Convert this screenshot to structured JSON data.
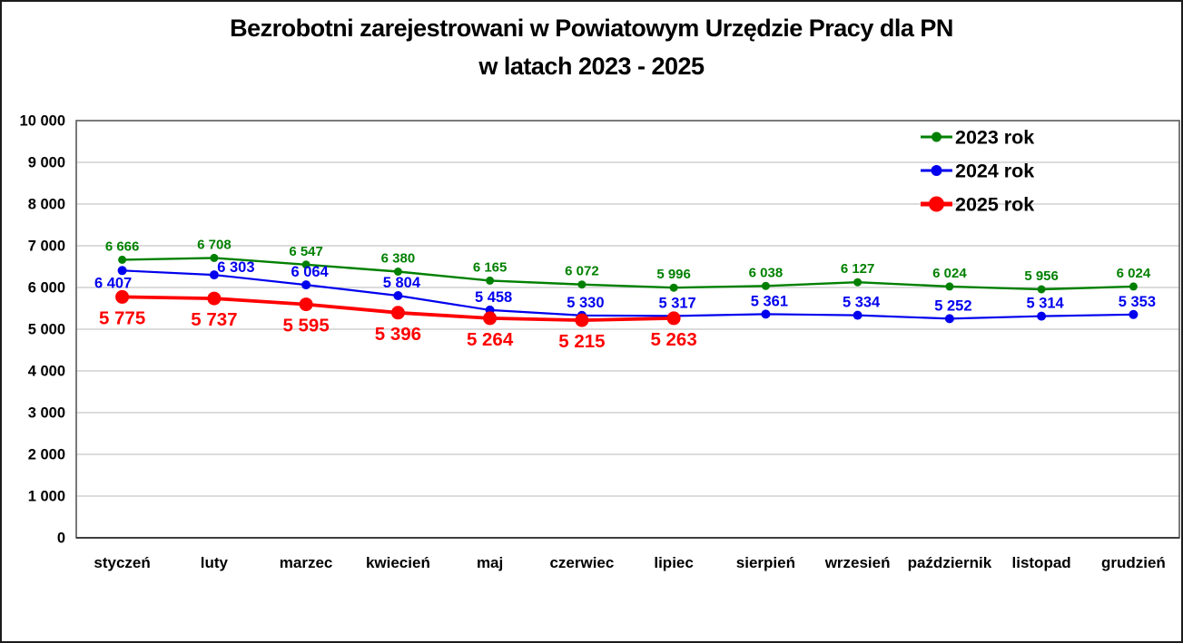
{
  "title": {
    "line1": "Bezrobotni zarejestrowani w Powiatowym Urzędzie Pracy dla PN",
    "line2": "w latach 2023 - 2025"
  },
  "chart_data": {
    "type": "line",
    "categories": [
      "styczeń",
      "luty",
      "marzec",
      "kwiecień",
      "maj",
      "czerwiec",
      "lipiec",
      "sierpień",
      "wrzesień",
      "październik",
      "listopad",
      "grudzień"
    ],
    "series": [
      {
        "name": "2023 rok",
        "color": "#008000",
        "values": [
          6666,
          6708,
          6547,
          6380,
          6165,
          6072,
          5996,
          6038,
          6127,
          6024,
          5956,
          6024
        ]
      },
      {
        "name": "2024 rok",
        "color": "#0000ee",
        "values": [
          6407,
          6303,
          6064,
          5804,
          5458,
          5330,
          5317,
          5361,
          5334,
          5252,
          5314,
          5353
        ]
      },
      {
        "name": "2025 rok",
        "color": "#ff0000",
        "values": [
          5775,
          5737,
          5595,
          5396,
          5264,
          5215,
          5263
        ]
      }
    ],
    "ylim": [
      0,
      10000
    ],
    "ytick_step": 1000,
    "ytick_labels": [
      "0",
      "1 000",
      "2 000",
      "3 000",
      "4 000",
      "5 000",
      "6 000",
      "7 000",
      "8 000",
      "9 000",
      "10 000"
    ],
    "grid": "horizontal",
    "legend_position": "top-right-inside",
    "data_labels": "shown-on-every-point",
    "number_format": "space-thousands"
  },
  "colors": {
    "background": "#ffffff",
    "grid": "#c6c6c6",
    "plot_border": "#595959",
    "axis_line": "#3f3f3f",
    "text": "#000000",
    "frame_border": "#1b1b1b"
  }
}
